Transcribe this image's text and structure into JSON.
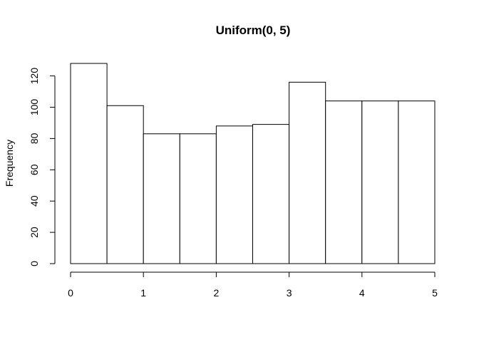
{
  "chart_data": {
    "type": "bar",
    "title": "Uniform(0, 5)",
    "xlabel": "",
    "ylabel": "Frequency",
    "bins": [
      {
        "x0": 0.0,
        "x1": 0.5,
        "value": 128
      },
      {
        "x0": 0.5,
        "x1": 1.0,
        "value": 101
      },
      {
        "x0": 1.0,
        "x1": 1.5,
        "value": 83
      },
      {
        "x0": 1.5,
        "x1": 2.0,
        "value": 83
      },
      {
        "x0": 2.0,
        "x1": 2.5,
        "value": 88
      },
      {
        "x0": 2.5,
        "x1": 3.0,
        "value": 89
      },
      {
        "x0": 3.0,
        "x1": 3.5,
        "value": 116
      },
      {
        "x0": 3.5,
        "x1": 4.0,
        "value": 104
      },
      {
        "x0": 4.0,
        "x1": 4.5,
        "value": 104
      },
      {
        "x0": 4.5,
        "x1": 5.0,
        "value": 104
      }
    ],
    "xlim": [
      0,
      5
    ],
    "ylim": [
      0,
      128
    ],
    "x_ticks": [
      "0",
      "1",
      "2",
      "3",
      "4",
      "5"
    ],
    "y_ticks": [
      "0",
      "20",
      "40",
      "60",
      "80",
      "100",
      "120"
    ],
    "grid": false
  }
}
